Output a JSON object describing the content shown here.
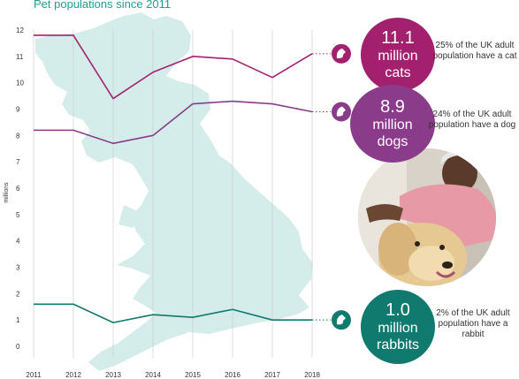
{
  "title": "Pet populations since 2011",
  "colors": {
    "cats": "#a3206e",
    "dogs": "#8a3c8b",
    "rabbits": "#0f7a6d",
    "map": "#d4ecea",
    "title": "#1f9e8e",
    "grid": "#c8c8c8"
  },
  "chart_data": {
    "type": "line",
    "title": "Pet populations since 2011",
    "xlabel": "",
    "ylabel": "millions",
    "ylim": [
      0,
      12
    ],
    "yticks": [
      "0",
      "1",
      "2",
      "3",
      "4",
      "5",
      "6",
      "7",
      "8",
      "9",
      "10",
      "11",
      "12"
    ],
    "x": [
      "2011",
      "2012",
      "2013",
      "2014",
      "2015",
      "2016",
      "2017",
      "2018"
    ],
    "grid": "vertical lines at each year",
    "legend": "none",
    "series": [
      {
        "key": "cats",
        "values": [
          11.8,
          11.8,
          9.4,
          10.4,
          11.0,
          10.9,
          10.2,
          11.1
        ]
      },
      {
        "key": "dogs",
        "values": [
          8.2,
          8.2,
          7.7,
          8.0,
          9.2,
          9.3,
          9.2,
          8.9
        ]
      },
      {
        "key": "rabbits",
        "values": [
          1.6,
          1.6,
          0.9,
          1.2,
          1.1,
          1.4,
          1.0,
          1.0
        ]
      }
    ]
  },
  "callouts": [
    {
      "key": "cats",
      "icon": "cat-icon",
      "number": "11.1",
      "line1": "million",
      "line2": "cats",
      "note": "25% of the UK adult population have a cat"
    },
    {
      "key": "dogs",
      "icon": "dog-icon",
      "number": "8.9",
      "line1": "million",
      "line2": "dogs",
      "note": "24% of the UK adult population have a dog"
    },
    {
      "key": "rabbits",
      "icon": "rabbit-icon",
      "number": "1.0",
      "line1": "million",
      "line2": "rabbits",
      "note": "2% of the UK adult population have a rabbit"
    }
  ],
  "photo": {
    "subject": "man hugging golden retriever"
  }
}
